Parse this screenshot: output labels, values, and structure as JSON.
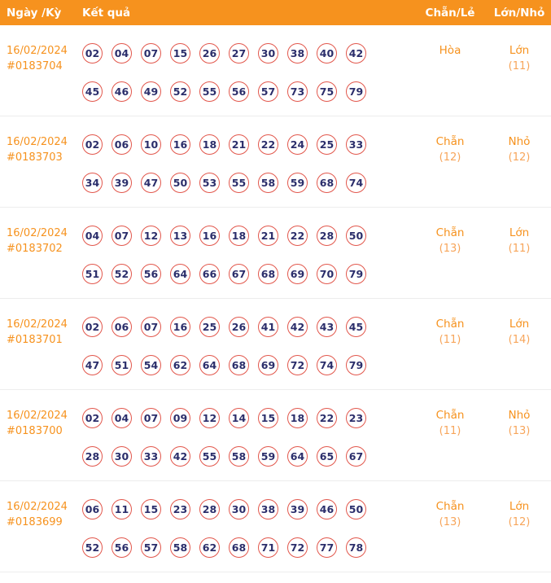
{
  "colors": {
    "header_bg": "#F6921E",
    "accent_orange": "#F6921E",
    "count_orange": "#F7A55A",
    "ball_border_red": "#E2574C",
    "ball_text_navy": "#2B2E6B"
  },
  "header": {
    "columns": [
      "Ngày /Kỳ",
      "Kết quả",
      "Chẵn/Lẻ",
      "Lớn/Nhỏ"
    ]
  },
  "rows": [
    {
      "date": "16/02/2024",
      "id": "#0183704",
      "numbers_line1": [
        "02",
        "04",
        "07",
        "15",
        "26",
        "27",
        "30",
        "38",
        "40",
        "42"
      ],
      "numbers_line2": [
        "45",
        "46",
        "49",
        "52",
        "55",
        "56",
        "57",
        "73",
        "75",
        "79"
      ],
      "parity": "Hòa",
      "parity_count": "",
      "size": "Lớn",
      "size_count": "(11)"
    },
    {
      "date": "16/02/2024",
      "id": "#0183703",
      "numbers_line1": [
        "02",
        "06",
        "10",
        "16",
        "18",
        "21",
        "22",
        "24",
        "25",
        "33"
      ],
      "numbers_line2": [
        "34",
        "39",
        "47",
        "50",
        "53",
        "55",
        "58",
        "59",
        "68",
        "74"
      ],
      "parity": "Chẵn",
      "parity_count": "(12)",
      "size": "Nhỏ",
      "size_count": "(12)"
    },
    {
      "date": "16/02/2024",
      "id": "#0183702",
      "numbers_line1": [
        "04",
        "07",
        "12",
        "13",
        "16",
        "18",
        "21",
        "22",
        "28",
        "50"
      ],
      "numbers_line2": [
        "51",
        "52",
        "56",
        "64",
        "66",
        "67",
        "68",
        "69",
        "70",
        "79"
      ],
      "parity": "Chẵn",
      "parity_count": "(13)",
      "size": "Lớn",
      "size_count": "(11)"
    },
    {
      "date": "16/02/2024",
      "id": "#0183701",
      "numbers_line1": [
        "02",
        "06",
        "07",
        "16",
        "25",
        "26",
        "41",
        "42",
        "43",
        "45"
      ],
      "numbers_line2": [
        "47",
        "51",
        "54",
        "62",
        "64",
        "68",
        "69",
        "72",
        "74",
        "79"
      ],
      "parity": "Chẵn",
      "parity_count": "(11)",
      "size": "Lớn",
      "size_count": "(14)"
    },
    {
      "date": "16/02/2024",
      "id": "#0183700",
      "numbers_line1": [
        "02",
        "04",
        "07",
        "09",
        "12",
        "14",
        "15",
        "18",
        "22",
        "23"
      ],
      "numbers_line2": [
        "28",
        "30",
        "33",
        "42",
        "55",
        "58",
        "59",
        "64",
        "65",
        "67"
      ],
      "parity": "Chẵn",
      "parity_count": "(11)",
      "size": "Nhỏ",
      "size_count": "(13)"
    },
    {
      "date": "16/02/2024",
      "id": "#0183699",
      "numbers_line1": [
        "06",
        "11",
        "15",
        "23",
        "28",
        "30",
        "38",
        "39",
        "46",
        "50"
      ],
      "numbers_line2": [
        "52",
        "56",
        "57",
        "58",
        "62",
        "68",
        "71",
        "72",
        "77",
        "78"
      ],
      "parity": "Chẵn",
      "parity_count": "(13)",
      "size": "Lớn",
      "size_count": "(12)"
    }
  ]
}
